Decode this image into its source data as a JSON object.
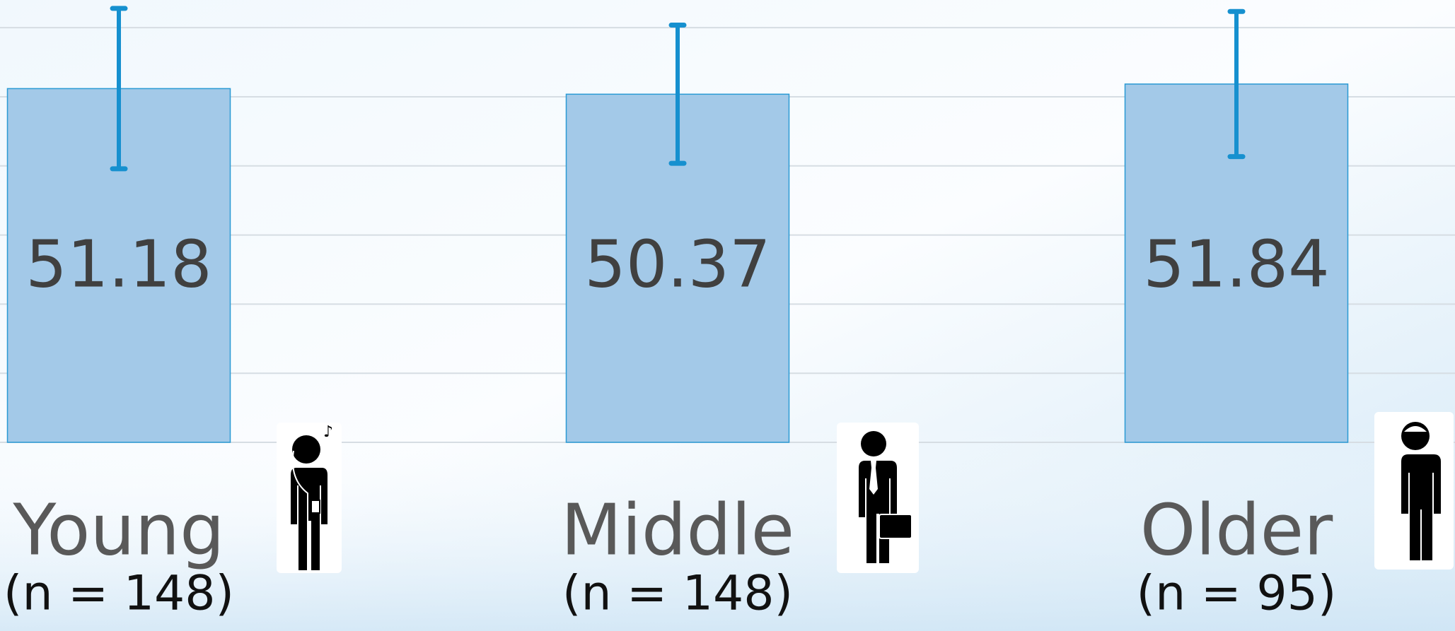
{
  "chart_data": {
    "type": "bar",
    "categories": [
      "Young",
      "Middle",
      "Older"
    ],
    "category_notes": [
      "(n = 148)",
      "(n = 148)",
      "(n = 95)"
    ],
    "values": [
      51.18,
      50.37,
      51.84
    ],
    "errors": [
      11.6,
      10,
      10.5
    ],
    "color": "#a3c9e8",
    "error_color": "#1690cf",
    "ylim": [
      0,
      64
    ],
    "yticks": [
      0,
      10,
      20,
      30,
      40,
      50,
      60
    ],
    "grid": true
  }
}
